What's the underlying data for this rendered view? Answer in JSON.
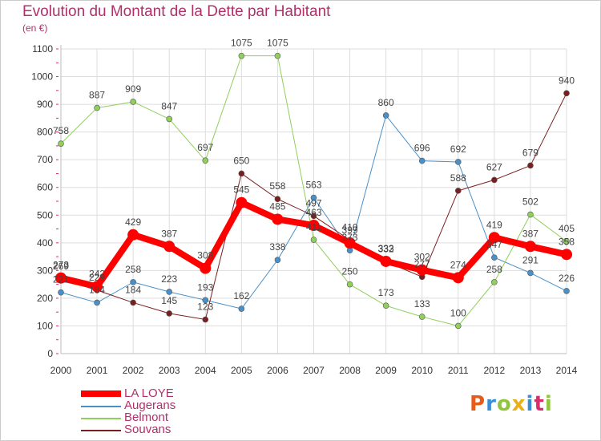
{
  "header": {
    "title": "Evolution du Montant de la Dette par Habitant",
    "subtitle": "(en €)"
  },
  "colors": {
    "title": "#b0306a",
    "grid": "#dddddd",
    "axis_text": "#333333",
    "tick_mark": "#cc3366",
    "value_label": "#444444"
  },
  "brand": {
    "text": "Proxiti",
    "letter_colors": [
      "#e85a1a",
      "#3a8ed8",
      "#8fc63b",
      "#e8b11a",
      "#3a8ed8",
      "#d82e6b",
      "#8fc63b"
    ]
  },
  "chart_data": {
    "type": "line",
    "x": [
      "2000",
      "2001",
      "2002",
      "2003",
      "2004",
      "2005",
      "2006",
      "2007",
      "2008",
      "2009",
      "2010",
      "2011",
      "2012",
      "2013",
      "2014"
    ],
    "ylim": [
      0,
      1100
    ],
    "yticks": [
      "0",
      "100",
      "200",
      "300",
      "400",
      "500",
      "600",
      "700",
      "800",
      "900",
      "1000",
      "1100"
    ],
    "grid": true,
    "legend_position": "bottom-left",
    "series": [
      {
        "name": "LA LOYE",
        "color": "#ff0000",
        "width": 8,
        "point_labels": true,
        "values": [
          273,
          242,
          429,
          387,
          308,
          545,
          485,
          463,
          399,
          333,
          302,
          274,
          419,
          387,
          358
        ]
      },
      {
        "name": "Augerans",
        "color": "#4a90c8",
        "width": 1,
        "point_labels": true,
        "values": [
          221,
          184,
          258,
          223,
          193,
          162,
          338,
          563,
          373,
          860,
          696,
          692,
          347,
          291,
          226
        ]
      },
      {
        "name": "Belmont",
        "color": "#8fcf5a",
        "width": 1,
        "point_labels": true,
        "values": [
          758,
          887,
          909,
          847,
          697,
          1075,
          1075,
          411,
          250,
          173,
          133,
          100,
          258,
          502,
          405
        ]
      },
      {
        "name": "Souvans",
        "color": "#7a1f1f",
        "width": 1,
        "point_labels": true,
        "values": [
          269,
          229,
          184,
          145,
          123,
          650,
          558,
          497,
          410,
          332,
          277,
          588,
          627,
          679,
          940
        ]
      }
    ]
  }
}
